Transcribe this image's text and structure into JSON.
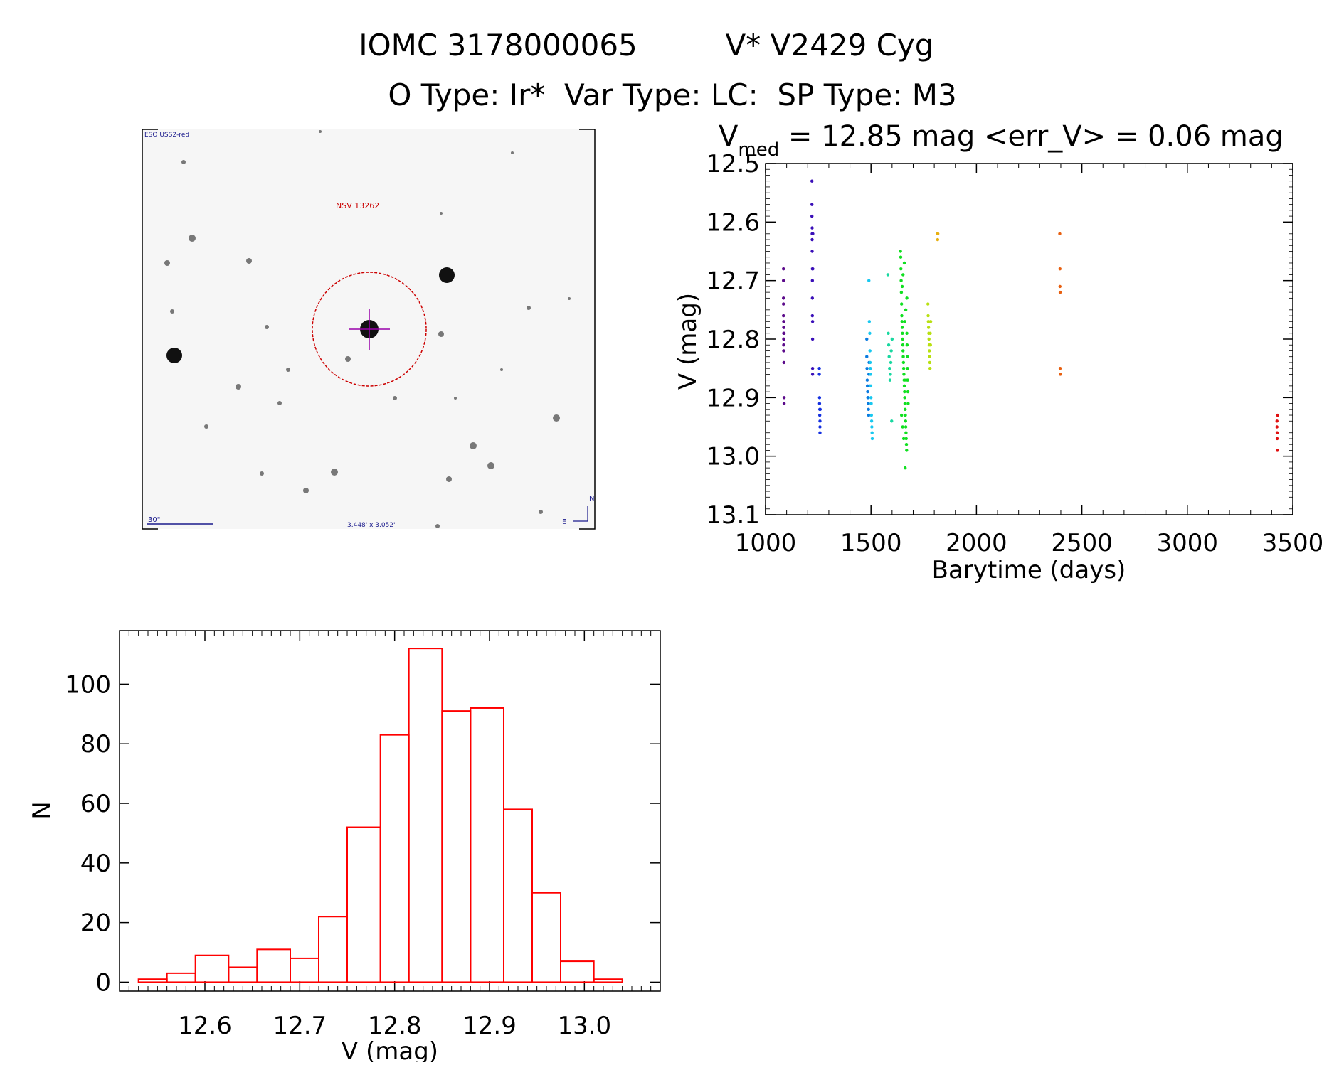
{
  "header": {
    "line1_id": "IOMC 3178000065",
    "line1_name": "V* V2429 Cyg",
    "line2": "O Type: Ir*  Var Type: LC:  SP Type: M3"
  },
  "sky_image": {
    "survey_label": "ESO USS2-red",
    "target_label": "NSV 13262",
    "scale_label": "30\"",
    "size_label": "3.448' x 3.052'",
    "north_label": "N",
    "east_label": "E",
    "colors": {
      "target_marker": "#cc0000",
      "annotation": "#1a1a8c",
      "cross": "#9900aa"
    }
  },
  "chart_data": [
    {
      "type": "scatter",
      "title_prefix": "V",
      "title_subscript": "med",
      "title_rest": " = 12.85 mag <err_V> = 0.06 mag",
      "xlabel": "Barytime (days)",
      "ylabel": "V (mag)",
      "xlim": [
        1000,
        3500
      ],
      "ylim": [
        13.1,
        12.5
      ],
      "y_inverted": true,
      "x_ticks": [
        1000,
        1500,
        2000,
        2500,
        3000,
        3500
      ],
      "y_ticks": [
        "12.5",
        "12.6",
        "12.7",
        "12.8",
        "12.9",
        "13.0",
        "13.1"
      ],
      "series": [
        {
          "color": "#5b0a8a",
          "x": [
            1085,
            1085,
            1085,
            1085,
            1085,
            1086,
            1086,
            1086,
            1086,
            1086,
            1086,
            1087,
            1087,
            1087,
            1088,
            1088,
            1088
          ],
          "y": [
            12.68,
            12.7,
            12.73,
            12.74,
            12.76,
            12.77,
            12.78,
            12.79,
            12.8,
            12.81,
            12.82,
            12.78,
            12.8,
            12.84,
            12.9,
            12.91,
            12.79
          ]
        },
        {
          "color": "#3a0fb8",
          "x": [
            1220,
            1220,
            1220,
            1221,
            1221,
            1221,
            1221,
            1222,
            1222,
            1222,
            1222,
            1223,
            1223,
            1223,
            1223,
            1224,
            1224
          ],
          "y": [
            12.53,
            12.57,
            12.59,
            12.61,
            12.62,
            12.63,
            12.65,
            12.68,
            12.7,
            12.73,
            12.76,
            12.77,
            12.8,
            12.86,
            12.85,
            12.68,
            12.62
          ]
        },
        {
          "color": "#1430e0",
          "x": [
            1255,
            1255,
            1256,
            1256,
            1257,
            1257,
            1258,
            1258,
            1258,
            1259
          ],
          "y": [
            12.85,
            12.86,
            12.9,
            12.91,
            12.92,
            12.93,
            12.94,
            12.95,
            12.96,
            12.92
          ]
        },
        {
          "color": "#0a7be0",
          "x": [
            1480,
            1480,
            1481,
            1482,
            1483,
            1484,
            1485,
            1486,
            1487,
            1488,
            1489,
            1490,
            1491,
            1492
          ],
          "y": [
            12.8,
            12.83,
            12.85,
            12.87,
            12.88,
            12.89,
            12.9,
            12.9,
            12.91,
            12.92,
            12.93,
            12.86,
            12.84,
            12.88
          ]
        },
        {
          "color": "#18c8f0",
          "x": [
            1490,
            1492,
            1494,
            1495,
            1496,
            1497,
            1498,
            1499,
            1500,
            1501,
            1502,
            1503,
            1504,
            1505,
            1506
          ],
          "y": [
            12.7,
            12.77,
            12.79,
            12.82,
            12.84,
            12.85,
            12.86,
            12.88,
            12.9,
            12.91,
            12.93,
            12.94,
            12.95,
            12.96,
            12.97
          ]
        },
        {
          "color": "#18d8a0",
          "x": [
            1580,
            1582,
            1584,
            1586,
            1588,
            1590,
            1592,
            1594,
            1596,
            1598,
            1600
          ],
          "y": [
            12.69,
            12.79,
            12.81,
            12.83,
            12.85,
            12.87,
            12.86,
            12.84,
            12.82,
            12.94,
            12.8
          ]
        },
        {
          "color": "#10e020",
          "x": [
            1640,
            1641,
            1642,
            1643,
            1644,
            1645,
            1646,
            1647,
            1648,
            1649,
            1650,
            1651,
            1652,
            1653,
            1654,
            1655,
            1656,
            1657,
            1658,
            1659,
            1660,
            1661,
            1662,
            1663,
            1664,
            1665,
            1666,
            1667,
            1668,
            1669,
            1670,
            1671,
            1672,
            1673,
            1674,
            1675,
            1676,
            1645,
            1650,
            1655,
            1660,
            1665,
            1670,
            1648,
            1652,
            1658,
            1662,
            1666
          ],
          "y": [
            12.65,
            12.66,
            12.68,
            12.7,
            12.72,
            12.74,
            12.76,
            12.77,
            12.78,
            12.79,
            12.8,
            12.81,
            12.82,
            12.83,
            12.84,
            12.85,
            12.86,
            12.87,
            12.88,
            12.89,
            12.9,
            12.91,
            12.92,
            12.93,
            12.94,
            12.95,
            12.96,
            12.97,
            12.98,
            12.99,
            12.79,
            12.81,
            12.83,
            12.85,
            12.87,
            12.89,
            12.91,
            12.93,
            12.95,
            12.97,
            12.77,
            12.75,
            12.73,
            12.71,
            12.69,
            12.67,
            13.02,
            12.87
          ]
        },
        {
          "color": "#b8e010",
          "x": [
            1770,
            1771,
            1772,
            1773,
            1774,
            1775,
            1776,
            1777,
            1778,
            1779,
            1780,
            1781,
            1782,
            1783
          ],
          "y": [
            12.74,
            12.76,
            12.77,
            12.78,
            12.79,
            12.8,
            12.81,
            12.82,
            12.83,
            12.84,
            12.85,
            12.79,
            12.81,
            12.77
          ]
        },
        {
          "color": "#e8b010",
          "x": [
            1815,
            1816,
            1817
          ],
          "y": [
            12.62,
            12.63,
            12.62
          ]
        },
        {
          "color": "#e86010",
          "x": [
            2395,
            2396,
            2396,
            2397,
            2397,
            2398
          ],
          "y": [
            12.62,
            12.68,
            12.71,
            12.72,
            12.85,
            12.86
          ]
        },
        {
          "color": "#e01010",
          "x": [
            3425,
            3425,
            3426,
            3426,
            3427,
            3428
          ],
          "y": [
            12.94,
            12.95,
            12.96,
            12.97,
            12.99,
            12.93
          ]
        }
      ]
    },
    {
      "type": "bar",
      "subtype": "histogram",
      "xlabel": "V (mag)",
      "ylabel": "N",
      "xlim": [
        12.51,
        13.08
      ],
      "ylim": [
        -3,
        118
      ],
      "x_ticks": [
        "12.6",
        "12.7",
        "12.8",
        "12.9",
        "13.0"
      ],
      "y_ticks": [
        "0",
        "20",
        "40",
        "60",
        "80",
        "100"
      ],
      "bin_edges": [
        12.53,
        12.56,
        12.59,
        12.625,
        12.655,
        12.69,
        12.72,
        12.75,
        12.785,
        12.815,
        12.85,
        12.88,
        12.915,
        12.945,
        12.975,
        13.01,
        13.04
      ],
      "counts": [
        1,
        3,
        9,
        5,
        11,
        8,
        22,
        52,
        83,
        112,
        91,
        92,
        58,
        30,
        7,
        1
      ],
      "color": "#ff0000"
    }
  ]
}
